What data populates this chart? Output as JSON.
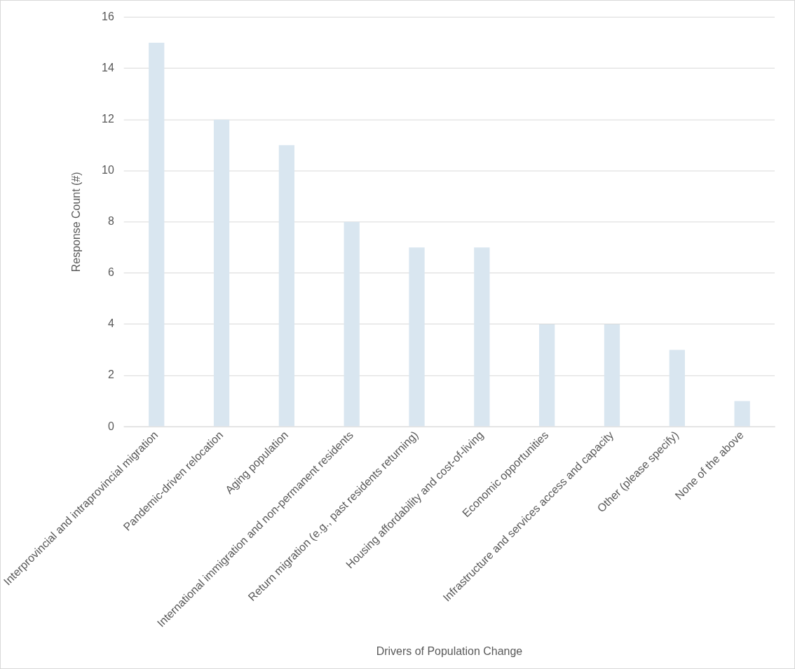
{
  "chart_data": {
    "type": "bar",
    "xlabel": "Drivers of Population Change",
    "ylabel": "Response Count (#)",
    "categories": [
      "Interprovincial and intraprovincial migration",
      "Pandemic-driven relocation",
      "Aging population",
      "International immigration and non-permanent residents",
      "Return migration (e.g., past residents returning)",
      "Housing affordability and cost-of-living",
      "Economic opportunities",
      "Infrastructure and services access and capacity",
      "Other (please specify)",
      "None of the above"
    ],
    "values": [
      15,
      12,
      11,
      8,
      7,
      7,
      4,
      4,
      3,
      1
    ],
    "color": "#d9e6f0",
    "ylim": [
      0,
      16
    ],
    "yticks": [
      0,
      2,
      4,
      6,
      8,
      10,
      12,
      14,
      16
    ],
    "grid": "y",
    "legend": false
  }
}
